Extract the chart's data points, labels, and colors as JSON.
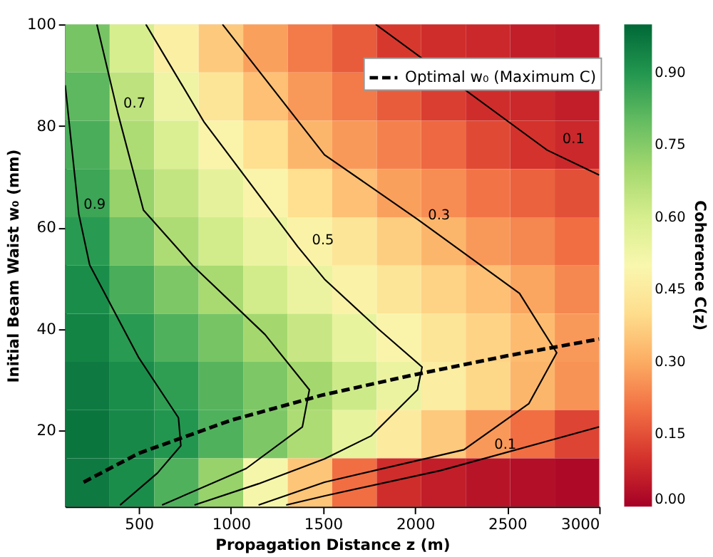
{
  "chart_data": {
    "type": "heatmap",
    "xlabel": "Propagation Distance z (m)",
    "ylabel": "Initial Beam Waist w₀ (mm)",
    "clabel": "Coherence C(z)",
    "cells": [
      [
        0.77,
        0.6,
        0.47,
        0.36,
        0.28,
        0.22,
        0.17,
        0.11,
        0.09,
        0.08,
        0.06,
        0.05
      ],
      [
        0.81,
        0.65,
        0.53,
        0.43,
        0.34,
        0.27,
        0.22,
        0.17,
        0.12,
        0.09,
        0.08,
        0.06
      ],
      [
        0.84,
        0.68,
        0.59,
        0.49,
        0.41,
        0.32,
        0.27,
        0.23,
        0.19,
        0.14,
        0.1,
        0.08
      ],
      [
        0.86,
        0.72,
        0.64,
        0.56,
        0.49,
        0.41,
        0.34,
        0.28,
        0.25,
        0.21,
        0.18,
        0.15
      ],
      [
        0.89,
        0.78,
        0.68,
        0.61,
        0.54,
        0.48,
        0.43,
        0.37,
        0.32,
        0.27,
        0.24,
        0.2
      ],
      [
        0.92,
        0.84,
        0.76,
        0.69,
        0.61,
        0.54,
        0.48,
        0.43,
        0.38,
        0.34,
        0.29,
        0.24
      ],
      [
        0.94,
        0.89,
        0.83,
        0.77,
        0.7,
        0.63,
        0.55,
        0.49,
        0.43,
        0.38,
        0.33,
        0.27
      ],
      [
        0.96,
        0.92,
        0.88,
        0.82,
        0.76,
        0.7,
        0.62,
        0.54,
        0.46,
        0.39,
        0.32,
        0.26
      ],
      [
        0.97,
        0.93,
        0.9,
        0.83,
        0.76,
        0.68,
        0.55,
        0.45,
        0.36,
        0.27,
        0.2,
        0.13
      ],
      [
        0.96,
        0.92,
        0.83,
        0.72,
        0.51,
        0.35,
        0.2,
        0.09,
        0.06,
        0.04,
        0.03,
        0.02
      ]
    ],
    "clim": [
      0,
      1
    ],
    "cticks": [
      {
        "value": 0,
        "label": "0.00"
      },
      {
        "value": 0.15,
        "label": "0.15"
      },
      {
        "value": 0.3,
        "label": "0.30"
      },
      {
        "value": 0.45,
        "label": "0.45"
      },
      {
        "value": 0.6,
        "label": "0.60"
      },
      {
        "value": 0.75,
        "label": "0.75"
      },
      {
        "value": 0.9,
        "label": "0.90"
      }
    ],
    "xlim": [
      100,
      3000
    ],
    "xticks": [
      500,
      1000,
      1500,
      2000,
      2500,
      3000
    ],
    "ylim": [
      5,
      100
    ],
    "yticks": [
      20,
      40,
      60,
      80,
      100
    ],
    "grid": false,
    "legend": "top right",
    "series": [
      {
        "type": "line",
        "color": "#000000",
        "line_style": "solid",
        "x": [
          100,
          174,
          233,
          500,
          715,
          728,
          601,
          398
        ],
        "values": [
          88,
          62.6,
          52.6,
          34.3,
          22.5,
          17,
          11.6,
          5.3
        ]
      },
      {
        "type": "line",
        "color": "#000000",
        "line_style": "solid",
        "x": [
          272,
          386,
          525,
          792,
          1185,
          1426,
          1388,
          1083,
          626
        ],
        "values": [
          100,
          82.5,
          63.4,
          52.5,
          38.9,
          28,
          20.7,
          12.5,
          5.3
        ]
      },
      {
        "type": "line",
        "color": "#000000",
        "line_style": "solid",
        "x": [
          538,
          855,
          1363,
          1508,
          1800,
          2038,
          2013,
          1760,
          1508,
          1150,
          802
        ],
        "values": [
          100,
          80.7,
          56.2,
          49.8,
          40,
          32.5,
          28,
          18.9,
          14.4,
          9.5,
          5.3
        ]
      },
      {
        "type": "line",
        "color": "#000000",
        "line_style": "solid",
        "x": [
          954,
          1508,
          2013,
          2567,
          2769,
          2618,
          2265,
          1508,
          1150
        ],
        "values": [
          100,
          74.3,
          61.6,
          47,
          35.3,
          25.3,
          16.2,
          9.8,
          5.3
        ]
      },
      {
        "type": "line",
        "color": "#000000",
        "line_style": "solid",
        "x": [
          1786,
          2718,
          3000
        ],
        "values": [
          100,
          75.2,
          70.3
        ]
      },
      {
        "type": "line",
        "color": "#000000",
        "line_style": "solid",
        "x": [
          3000,
          2138,
          1508,
          1300
        ],
        "values": [
          20.7,
          12.1,
          7.1,
          5.3
        ]
      },
      {
        "type": "line",
        "name": "Optimal w₀ (Maximum C)",
        "color": "#000000",
        "line_style": "dashed",
        "x": [
          200,
          500,
          1000,
          1500,
          2000,
          2500,
          3000
        ],
        "values": [
          9.8,
          15.5,
          22,
          27,
          31,
          34.7,
          38
        ]
      }
    ],
    "annotations": [
      {
        "text": "0.9",
        "x": 170,
        "y": 62
      },
      {
        "text": "0.7",
        "x": 386,
        "y": 82
      },
      {
        "text": "0.5",
        "x": 1410,
        "y": 55
      },
      {
        "text": "0.3",
        "x": 2040,
        "y": 60
      },
      {
        "text": "0.1",
        "x": 2770,
        "y": 75
      },
      {
        "text": "0.1",
        "x": 2400,
        "y": 14.7
      }
    ]
  }
}
